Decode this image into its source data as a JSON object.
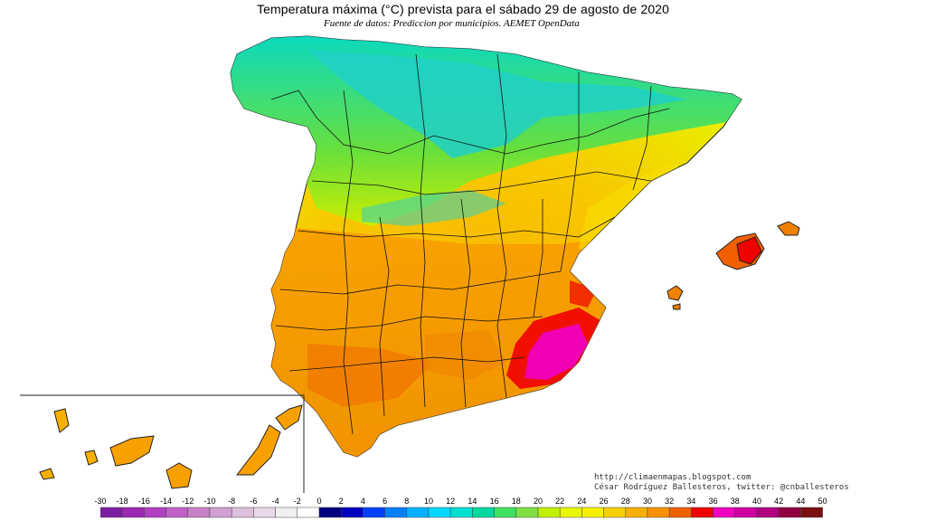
{
  "title": "Temperatura máxima (°C) prevista para el sábado 29 de agosto de 2020",
  "subtitle": "Fuente de datos: Prediccion por municipios. AEMET OpenData",
  "credits": {
    "blog": "http://climaenmapas.blogspot.com",
    "author": "César Rodríguez Ballesteros, twitter: @cnballesteros"
  },
  "legend": {
    "unit": "°C",
    "ticks": [
      "-30",
      "-18",
      "-16",
      "-14",
      "-12",
      "-10",
      "-8",
      "-6",
      "-4",
      "-2",
      "0",
      "2",
      "4",
      "6",
      "8",
      "10",
      "12",
      "14",
      "16",
      "18",
      "20",
      "22",
      "24",
      "26",
      "28",
      "30",
      "32",
      "34",
      "36",
      "38",
      "40",
      "42",
      "44",
      "50"
    ],
    "colors": [
      "#7b1fa2",
      "#9c27b0",
      "#b040c0",
      "#c060c8",
      "#c880c8",
      "#d0a0d0",
      "#dcc0dc",
      "#e8d8e8",
      "#f0f0f0",
      "#ffffff",
      "#000080",
      "#0000c0",
      "#0040ff",
      "#0080ff",
      "#00b0ff",
      "#00d8ff",
      "#00e0d0",
      "#00d8a0",
      "#40e060",
      "#80e040",
      "#c0f000",
      "#e8f800",
      "#f8f000",
      "#f8d000",
      "#f8b000",
      "#f89000",
      "#f06000",
      "#f00000",
      "#f000c0",
      "#d000a0",
      "#b00080",
      "#900040",
      "#7a1010"
    ]
  },
  "regions": [
    "peninsula",
    "balearic-islands",
    "canary-islands"
  ]
}
